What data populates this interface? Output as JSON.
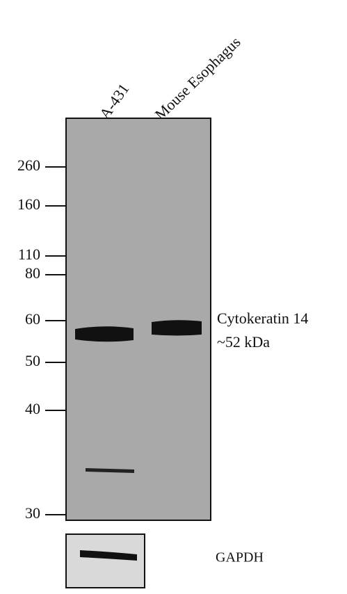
{
  "lanes": [
    "A-431",
    "Mouse Esophagus"
  ],
  "markers": [
    "260",
    "160",
    "110",
    "80",
    "60",
    "50",
    "40",
    "30"
  ],
  "band_label": {
    "protein": "Cytokeratin 14",
    "size": "~52 kDa"
  },
  "loading_control": "GAPDH"
}
